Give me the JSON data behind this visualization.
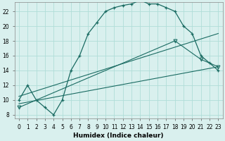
{
  "xlabel": "Humidex (Indice chaleur)",
  "bg_color": "#d9f0ee",
  "grid_color": "#b0ddd8",
  "line_color": "#1a6b62",
  "xlim": [
    -0.5,
    23.5
  ],
  "ylim": [
    7.5,
    23.2
  ],
  "xticks": [
    0,
    1,
    2,
    3,
    4,
    5,
    6,
    7,
    8,
    9,
    10,
    11,
    12,
    13,
    14,
    15,
    16,
    17,
    18,
    19,
    20,
    21,
    22,
    23
  ],
  "yticks": [
    8,
    10,
    12,
    14,
    16,
    18,
    20,
    22
  ],
  "line1_x": [
    0,
    1,
    2,
    3,
    4,
    5,
    6,
    7,
    8,
    9,
    10,
    11,
    12,
    13,
    14,
    15,
    16,
    17,
    18,
    19,
    20,
    21,
    22,
    23
  ],
  "line1_y": [
    10,
    12,
    10,
    9,
    8,
    10,
    14,
    16,
    19,
    20.5,
    22,
    22.5,
    22.8,
    23,
    23.5,
    23,
    23,
    22.5,
    22,
    20,
    19,
    16,
    15,
    14
  ],
  "line2_x": [
    0,
    23
  ],
  "line2_y": [
    9.5,
    14.5
  ],
  "line3_x": [
    0,
    18,
    21,
    23
  ],
  "line3_y": [
    9.0,
    18.0,
    15.5,
    14.5
  ],
  "line4_x": [
    0,
    23
  ],
  "line4_y": [
    10.5,
    19.0
  ]
}
